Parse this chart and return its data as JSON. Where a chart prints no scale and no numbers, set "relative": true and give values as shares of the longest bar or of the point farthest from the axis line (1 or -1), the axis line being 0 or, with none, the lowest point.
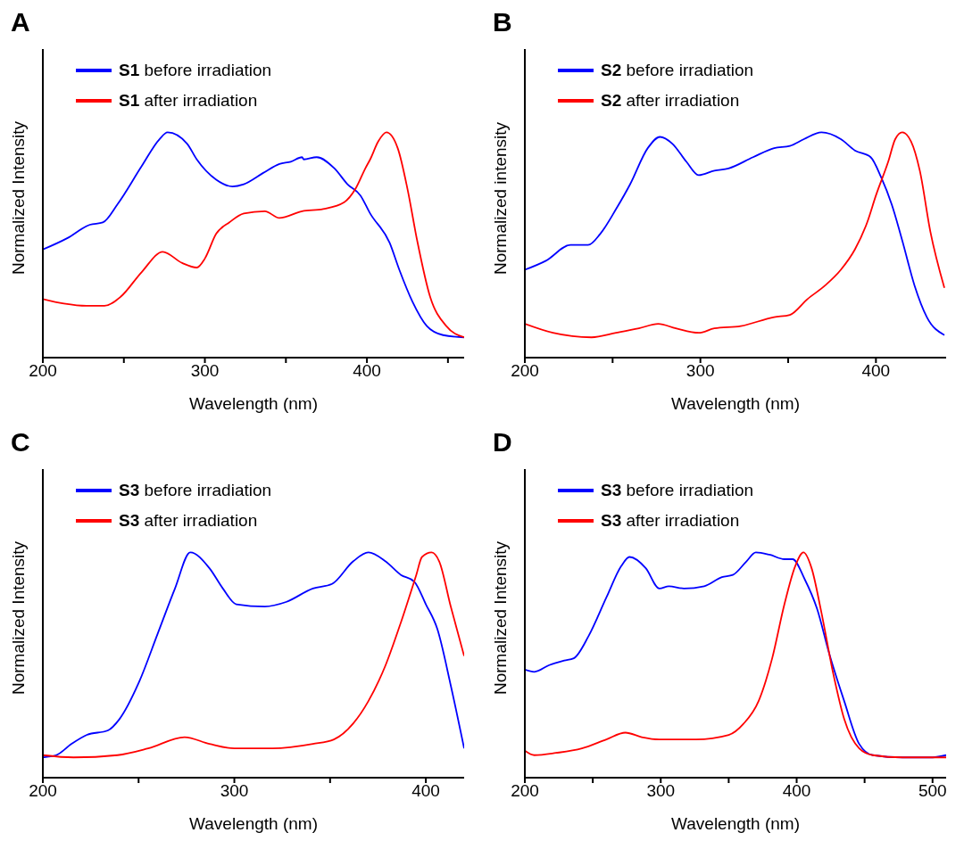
{
  "chart_data": [
    {
      "type": "line",
      "title": "A",
      "xlabel": "Wavelength (nm)",
      "ylabel": "Normalized Intensity",
      "relative": true,
      "legend": "top left",
      "xlim": [
        200,
        460
      ],
      "xticks": [
        200,
        {
          "value": 250,
          "label": null
        },
        300,
        {
          "value": 350,
          "label": null
        },
        400,
        {
          "value": 450,
          "label": null
        }
      ],
      "series": [
        {
          "name": "S1 before irradiation",
          "color": "#0000ff",
          "x": [
            200,
            215,
            229,
            237,
            246,
            261,
            272,
            277,
            289,
            295,
            307,
            317,
            324,
            336,
            346,
            353,
            360,
            361,
            369,
            380,
            388,
            396,
            402,
            414,
            420,
            428,
            437,
            447,
            460
          ],
          "values": [
            0.48,
            0.53,
            0.59,
            0.6,
            0.68,
            0.85,
            0.97,
            1.0,
            0.95,
            0.88,
            0.79,
            0.76,
            0.77,
            0.82,
            0.86,
            0.87,
            0.89,
            0.88,
            0.89,
            0.84,
            0.77,
            0.72,
            0.64,
            0.51,
            0.39,
            0.25,
            0.14,
            0.1,
            0.09
          ]
        },
        {
          "name": "S1 after irradiation",
          "color": "#ff0000",
          "x": [
            200,
            213,
            227,
            238,
            248,
            261,
            274,
            286,
            295,
            300,
            307,
            315,
            324,
            337,
            346,
            360,
            373,
            386,
            393,
            399,
            402,
            407,
            412,
            419,
            425,
            431,
            439,
            449,
            460
          ],
          "values": [
            0.26,
            0.24,
            0.23,
            0.23,
            0.27,
            0.38,
            0.47,
            0.42,
            0.4,
            0.44,
            0.55,
            0.6,
            0.64,
            0.65,
            0.62,
            0.65,
            0.66,
            0.69,
            0.75,
            0.84,
            0.88,
            0.96,
            1.0,
            0.93,
            0.75,
            0.52,
            0.27,
            0.14,
            0.09
          ]
        }
      ]
    },
    {
      "type": "line",
      "title": "B",
      "xlabel": "Wavelength (nm)",
      "ylabel": "Normalized intensity",
      "relative": true,
      "legend": "top left",
      "xlim": [
        200,
        440
      ],
      "xticks": [
        200,
        {
          "value": 250,
          "label": null
        },
        300,
        {
          "value": 350,
          "label": null
        },
        400
      ],
      "series": [
        {
          "name": "S2 before irradiation",
          "color": "#0000ff",
          "x": [
            200,
            212,
            226,
            236,
            243,
            252,
            260,
            270,
            277,
            284,
            292,
            299,
            308,
            316,
            330,
            342,
            351,
            359,
            369,
            380,
            388,
            397,
            403,
            409,
            415,
            422,
            429,
            439
          ],
          "values": [
            0.39,
            0.43,
            0.5,
            0.5,
            0.55,
            0.66,
            0.77,
            0.93,
            0.98,
            0.95,
            0.87,
            0.81,
            0.83,
            0.84,
            0.89,
            0.93,
            0.94,
            0.97,
            1.0,
            0.97,
            0.92,
            0.89,
            0.8,
            0.68,
            0.52,
            0.32,
            0.18,
            0.1
          ]
        },
        {
          "name": "S2 after irradiation",
          "color": "#ff0000",
          "x": [
            200,
            216,
            238,
            252,
            265,
            276,
            286,
            299,
            308,
            323,
            342,
            351,
            361,
            371,
            380,
            388,
            395,
            400,
            407,
            411,
            415,
            420,
            425,
            431,
            439
          ],
          "values": [
            0.15,
            0.11,
            0.09,
            0.11,
            0.13,
            0.15,
            0.13,
            0.11,
            0.13,
            0.14,
            0.18,
            0.19,
            0.26,
            0.32,
            0.39,
            0.48,
            0.6,
            0.72,
            0.87,
            0.97,
            1.0,
            0.96,
            0.83,
            0.56,
            0.31
          ]
        }
      ]
    },
    {
      "type": "line",
      "title": "C",
      "xlabel": "Wavelength (nm)",
      "ylabel": "Normalized Intensity",
      "relative": true,
      "legend": "top left",
      "xlim": [
        200,
        420
      ],
      "xticks": [
        200,
        {
          "value": 250,
          "label": null
        },
        300,
        {
          "value": 350,
          "label": null
        },
        400
      ],
      "series": [
        {
          "name": "S3 before irradiation",
          "color": "#0000ff",
          "x": [
            200,
            207,
            215,
            223,
            234,
            240,
            250,
            260,
            269,
            277,
            287,
            294,
            301,
            316,
            327,
            341,
            351,
            362,
            370,
            379,
            387,
            394,
            400,
            406,
            413,
            420
          ],
          "values": [
            0.09,
            0.1,
            0.15,
            0.19,
            0.21,
            0.26,
            0.42,
            0.64,
            0.84,
            1.0,
            0.93,
            0.84,
            0.77,
            0.76,
            0.78,
            0.84,
            0.86,
            0.96,
            1.0,
            0.96,
            0.9,
            0.87,
            0.77,
            0.66,
            0.41,
            0.13
          ]
        },
        {
          "name": "S3 after irradiation",
          "color": "#ff0000",
          "x": [
            200,
            216,
            239,
            255,
            274,
            287,
            300,
            320,
            341,
            352,
            362,
            370,
            379,
            387,
            395,
            398,
            403,
            407,
            413,
            420
          ],
          "values": [
            0.1,
            0.09,
            0.1,
            0.13,
            0.18,
            0.15,
            0.13,
            0.13,
            0.15,
            0.17,
            0.24,
            0.34,
            0.5,
            0.69,
            0.9,
            0.98,
            1.0,
            0.96,
            0.76,
            0.54
          ]
        }
      ]
    },
    {
      "type": "line",
      "title": "D",
      "xlabel": "Wavelength (nm)",
      "ylabel": "Normalized Intensity",
      "relative": true,
      "legend": "top left",
      "xlim": [
        200,
        510
      ],
      "xticks": [
        200,
        {
          "value": 250,
          "label": null
        },
        300,
        {
          "value": 350,
          "label": null
        },
        400,
        {
          "value": 450,
          "label": null
        },
        500
      ],
      "series": [
        {
          "name": "S3 before irradiation",
          "color": "#0000ff",
          "x": [
            200,
            207,
            218,
            229,
            236,
            247,
            260,
            271,
            277,
            289,
            299,
            306,
            317,
            332,
            345,
            353,
            363,
            370,
            380,
            391,
            397,
            406,
            415,
            424,
            435,
            446,
            456,
            478,
            500,
            510
          ],
          "values": [
            0.48,
            0.47,
            0.5,
            0.52,
            0.53,
            0.63,
            0.8,
            0.94,
            0.98,
            0.93,
            0.84,
            0.85,
            0.84,
            0.85,
            0.89,
            0.9,
            0.96,
            1.0,
            0.99,
            0.97,
            0.97,
            0.88,
            0.75,
            0.55,
            0.34,
            0.15,
            0.1,
            0.09,
            0.09,
            0.1
          ]
        },
        {
          "name": "S3 after irradiation",
          "color": "#ff0000",
          "x": [
            200,
            207,
            223,
            242,
            260,
            274,
            286,
            299,
            326,
            350,
            361,
            372,
            382,
            391,
            399,
            405,
            411,
            418,
            427,
            435,
            446,
            456,
            478,
            510
          ],
          "values": [
            0.12,
            0.1,
            0.11,
            0.13,
            0.17,
            0.2,
            0.18,
            0.17,
            0.17,
            0.19,
            0.24,
            0.34,
            0.53,
            0.77,
            0.94,
            1.0,
            0.93,
            0.74,
            0.46,
            0.26,
            0.13,
            0.1,
            0.09,
            0.09
          ]
        }
      ]
    }
  ]
}
